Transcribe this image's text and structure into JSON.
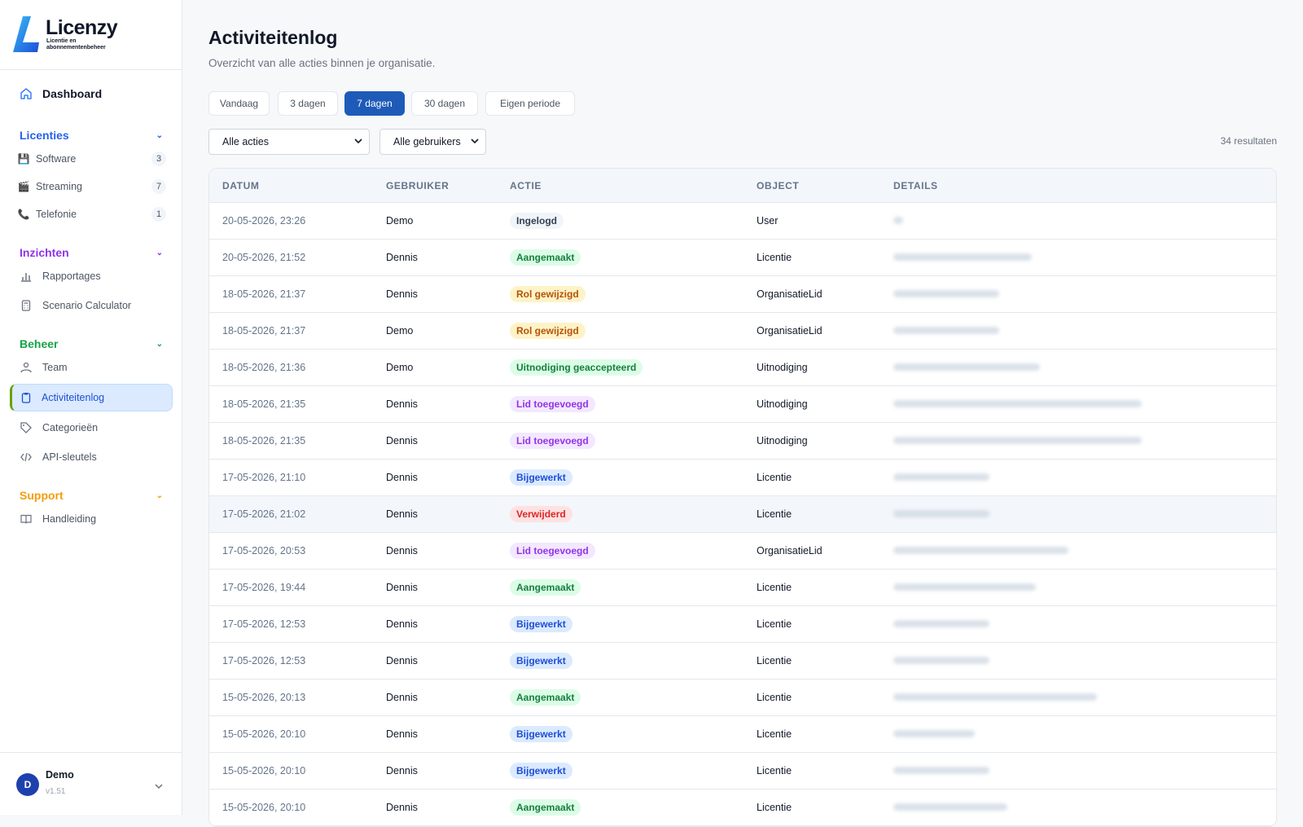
{
  "app": {
    "name": "Licenzy",
    "tagline": "Licentie en abonnementenbeheer"
  },
  "sidebar": {
    "dashboard": "Dashboard",
    "sections": [
      {
        "title": "Licenties",
        "color": "#2563eb",
        "items": [
          {
            "label": "Software",
            "icon": "floppy-icon",
            "count": "3"
          },
          {
            "label": "Streaming",
            "icon": "clapper-icon",
            "count": "7"
          },
          {
            "label": "Telefonie",
            "icon": "phone-icon",
            "count": "1"
          }
        ]
      },
      {
        "title": "Inzichten",
        "color": "#9333ea",
        "items": [
          {
            "label": "Rapportages",
            "icon": "bar-chart-icon"
          },
          {
            "label": "Scenario Calculator",
            "icon": "calculator-icon"
          }
        ]
      },
      {
        "title": "Beheer",
        "color": "#16a34a",
        "items": [
          {
            "label": "Team",
            "icon": "team-icon"
          },
          {
            "label": "Activiteitenlog",
            "icon": "clipboard-icon",
            "active": true
          },
          {
            "label": "Categorieën",
            "icon": "tag-icon"
          },
          {
            "label": "API-sleutels",
            "icon": "code-icon"
          }
        ]
      },
      {
        "title": "Support",
        "color": "#f59e0b",
        "items": [
          {
            "label": "Handleiding",
            "icon": "book-icon"
          }
        ]
      }
    ],
    "user": {
      "initial": "D",
      "name": "Demo",
      "version": "v1.51"
    }
  },
  "page": {
    "title": "Activiteitenlog",
    "subtitle": "Overzicht van alle acties binnen je organisatie.",
    "ranges": [
      "Vandaag",
      "3 dagen",
      "7 dagen",
      "30 dagen",
      "Eigen periode"
    ],
    "active_range": "7 dagen",
    "filters": {
      "action": "Alle acties",
      "user": "Alle gebruikers"
    },
    "results": "34 resultaten"
  },
  "table": {
    "columns": [
      "DATUM",
      "GEBRUIKER",
      "ACTIE",
      "OBJECT",
      "DETAILS"
    ],
    "rows": [
      {
        "date": "20-05-2026, 23:26",
        "user": "Demo",
        "action": "Ingelogd",
        "object": "User"
      },
      {
        "date": "20-05-2026, 21:52",
        "user": "Dennis",
        "action": "Aangemaakt",
        "object": "Licentie"
      },
      {
        "date": "18-05-2026, 21:37",
        "user": "Dennis",
        "action": "Rol gewijzigd",
        "object": "OrganisatieLid"
      },
      {
        "date": "18-05-2026, 21:37",
        "user": "Demo",
        "action": "Rol gewijzigd",
        "object": "OrganisatieLid"
      },
      {
        "date": "18-05-2026, 21:36",
        "user": "Demo",
        "action": "Uitnodiging geaccepteerd",
        "object": "Uitnodiging"
      },
      {
        "date": "18-05-2026, 21:35",
        "user": "Dennis",
        "action": "Lid toegevoegd",
        "object": "Uitnodiging"
      },
      {
        "date": "18-05-2026, 21:35",
        "user": "Dennis",
        "action": "Lid toegevoegd",
        "object": "Uitnodiging"
      },
      {
        "date": "17-05-2026, 21:10",
        "user": "Dennis",
        "action": "Bijgewerkt",
        "object": "Licentie"
      },
      {
        "date": "17-05-2026, 21:02",
        "user": "Dennis",
        "action": "Verwijderd",
        "object": "Licentie"
      },
      {
        "date": "17-05-2026, 20:53",
        "user": "Dennis",
        "action": "Lid toegevoegd",
        "object": "OrganisatieLid"
      },
      {
        "date": "17-05-2026, 19:44",
        "user": "Dennis",
        "action": "Aangemaakt",
        "object": "Licentie"
      },
      {
        "date": "17-05-2026, 12:53",
        "user": "Dennis",
        "action": "Bijgewerkt",
        "object": "Licentie"
      },
      {
        "date": "17-05-2026, 12:53",
        "user": "Dennis",
        "action": "Bijgewerkt",
        "object": "Licentie"
      },
      {
        "date": "15-05-2026, 20:13",
        "user": "Dennis",
        "action": "Aangemaakt",
        "object": "Licentie"
      },
      {
        "date": "15-05-2026, 20:10",
        "user": "Dennis",
        "action": "Bijgewerkt",
        "object": "Licentie"
      },
      {
        "date": "15-05-2026, 20:10",
        "user": "Dennis",
        "action": "Bijgewerkt",
        "object": "Licentie"
      },
      {
        "date": "15-05-2026, 20:10",
        "user": "Dennis",
        "action": "Aangemaakt",
        "object": "Licentie"
      }
    ]
  },
  "badge_colors": {
    "Ingelogd": {
      "bg": "#f1f5f9",
      "fg": "#334155"
    },
    "Aangemaakt": {
      "bg": "#dcfce7",
      "fg": "#15803d"
    },
    "Rol gewijzigd": {
      "bg": "#fef3c7",
      "fg": "#b45309"
    },
    "Uitnodiging geaccepteerd": {
      "bg": "#dcfce7",
      "fg": "#15803d"
    },
    "Lid toegevoegd": {
      "bg": "#f3e8ff",
      "fg": "#9333ea"
    },
    "Bijgewerkt": {
      "bg": "#dbeafe",
      "fg": "#1d4ed8"
    },
    "Verwijderd": {
      "bg": "#fee2e2",
      "fg": "#dc2626"
    }
  }
}
